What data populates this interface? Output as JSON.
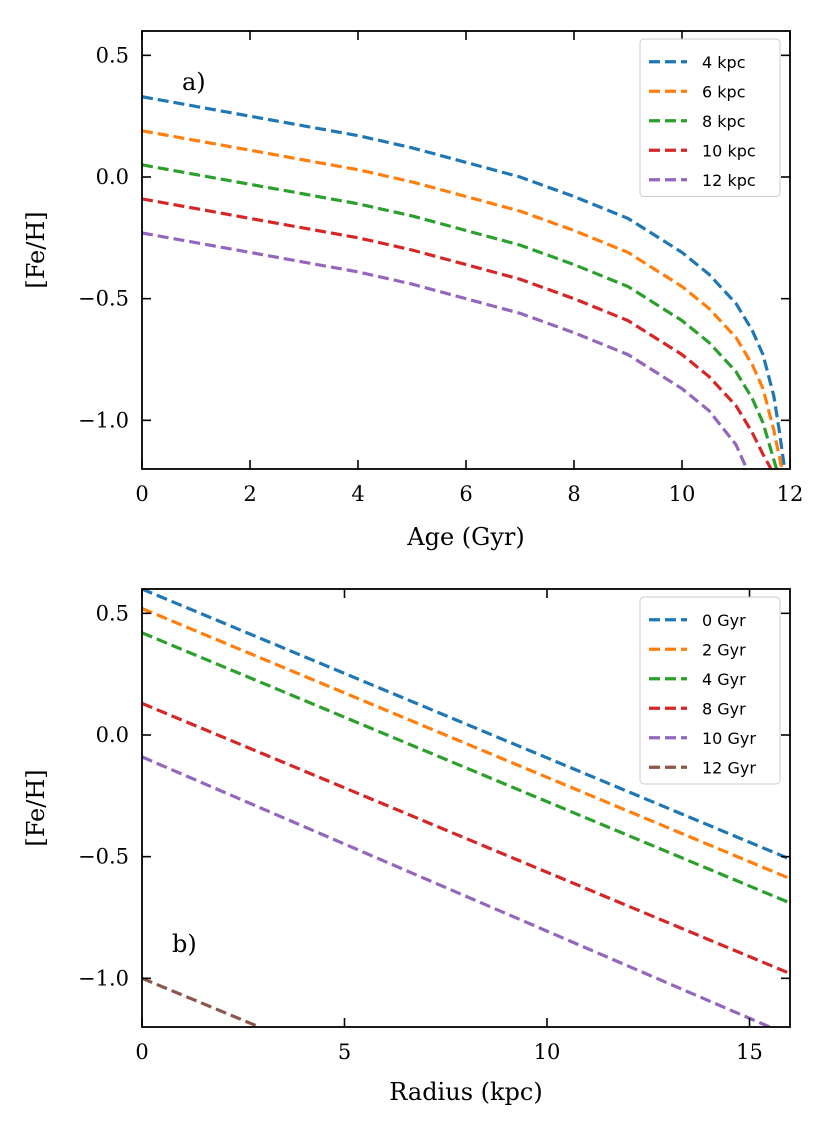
{
  "chart_data": [
    {
      "type": "line",
      "panel_label": "a)",
      "xlabel": "Age (Gyr)",
      "ylabel": "[Fe/H]",
      "xlim": [
        0,
        12
      ],
      "ylim": [
        -1.2,
        0.6
      ],
      "xticks": [
        0,
        2,
        4,
        6,
        8,
        10,
        12
      ],
      "yticks": [
        0.5,
        0.0,
        -0.5,
        -1.0
      ],
      "xtick_labels": [
        "0",
        "2",
        "4",
        "6",
        "8",
        "10",
        "12"
      ],
      "ytick_labels": [
        "0.5",
        "0.0",
        "−0.5",
        "−1.0"
      ],
      "legend_position": "top-right",
      "series": [
        {
          "name": "4 kpc",
          "color": "#1f77b4",
          "x": [
            0,
            1,
            2,
            3,
            4,
            5,
            6,
            7,
            8,
            9,
            10,
            10.5,
            11,
            11.3,
            11.5,
            11.7,
            11.8,
            11.9
          ],
          "y": [
            0.33,
            0.29,
            0.25,
            0.21,
            0.17,
            0.12,
            0.06,
            0.0,
            -0.08,
            -0.17,
            -0.31,
            -0.4,
            -0.52,
            -0.63,
            -0.73,
            -0.9,
            -1.04,
            -1.2
          ]
        },
        {
          "name": "6 kpc",
          "color": "#ff7f0e",
          "x": [
            0,
            1,
            2,
            3,
            4,
            5,
            6,
            7,
            8,
            9,
            10,
            10.5,
            11,
            11.3,
            11.5,
            11.7,
            11.85
          ],
          "y": [
            0.19,
            0.15,
            0.11,
            0.07,
            0.03,
            -0.02,
            -0.08,
            -0.14,
            -0.22,
            -0.31,
            -0.45,
            -0.54,
            -0.66,
            -0.77,
            -0.87,
            -1.04,
            -1.2
          ]
        },
        {
          "name": "8 kpc",
          "color": "#2ca02c",
          "x": [
            0,
            1,
            2,
            3,
            4,
            5,
            6,
            7,
            8,
            9,
            10,
            10.5,
            11,
            11.3,
            11.5,
            11.75
          ],
          "y": [
            0.05,
            0.01,
            -0.03,
            -0.07,
            -0.11,
            -0.16,
            -0.22,
            -0.28,
            -0.36,
            -0.45,
            -0.59,
            -0.68,
            -0.8,
            -0.91,
            -1.01,
            -1.2
          ]
        },
        {
          "name": "10 kpc",
          "color": "#d62728",
          "x": [
            0,
            1,
            2,
            3,
            4,
            5,
            6,
            7,
            8,
            9,
            10,
            10.5,
            11,
            11.3,
            11.5,
            11.65
          ],
          "y": [
            -0.09,
            -0.13,
            -0.17,
            -0.21,
            -0.25,
            -0.3,
            -0.36,
            -0.42,
            -0.5,
            -0.59,
            -0.73,
            -0.82,
            -0.94,
            -1.05,
            -1.14,
            -1.2
          ]
        },
        {
          "name": "12 kpc",
          "color": "#9467bd",
          "x": [
            0,
            1,
            2,
            3,
            4,
            5,
            6,
            7,
            8,
            9,
            10,
            10.5,
            11,
            11.2
          ],
          "y": [
            -0.23,
            -0.27,
            -0.31,
            -0.35,
            -0.39,
            -0.44,
            -0.5,
            -0.56,
            -0.64,
            -0.73,
            -0.87,
            -0.96,
            -1.1,
            -1.2
          ]
        }
      ]
    },
    {
      "type": "line",
      "panel_label": "b)",
      "xlabel": "Radius (kpc)",
      "ylabel": "[Fe/H]",
      "xlim": [
        0,
        16
      ],
      "ylim": [
        -1.2,
        0.6
      ],
      "xticks": [
        0,
        5,
        10,
        15
      ],
      "yticks": [
        0.5,
        0.0,
        -0.5,
        -1.0
      ],
      "xtick_labels": [
        "0",
        "5",
        "10",
        "15"
      ],
      "ytick_labels": [
        "0.5",
        "0.0",
        "−0.5",
        "−1.0"
      ],
      "legend_position": "top-right",
      "series": [
        {
          "name": "0 Gyr",
          "color": "#1f77b4",
          "x": [
            0,
            16
          ],
          "y": [
            0.6,
            -0.51
          ]
        },
        {
          "name": "2 Gyr",
          "color": "#ff7f0e",
          "x": [
            0,
            16
          ],
          "y": [
            0.52,
            -0.59
          ]
        },
        {
          "name": "4 Gyr",
          "color": "#2ca02c",
          "x": [
            0,
            16
          ],
          "y": [
            0.42,
            -0.69
          ]
        },
        {
          "name": "8 Gyr",
          "color": "#d62728",
          "x": [
            0,
            16
          ],
          "y": [
            0.13,
            -0.98
          ]
        },
        {
          "name": "10 Gyr",
          "color": "#9467bd",
          "x": [
            0,
            15.5
          ],
          "y": [
            -0.09,
            -1.2
          ]
        },
        {
          "name": "12 Gyr",
          "color": "#8c564b",
          "x": [
            0,
            2.9
          ],
          "y": [
            -1.0,
            -1.2
          ]
        }
      ]
    }
  ]
}
